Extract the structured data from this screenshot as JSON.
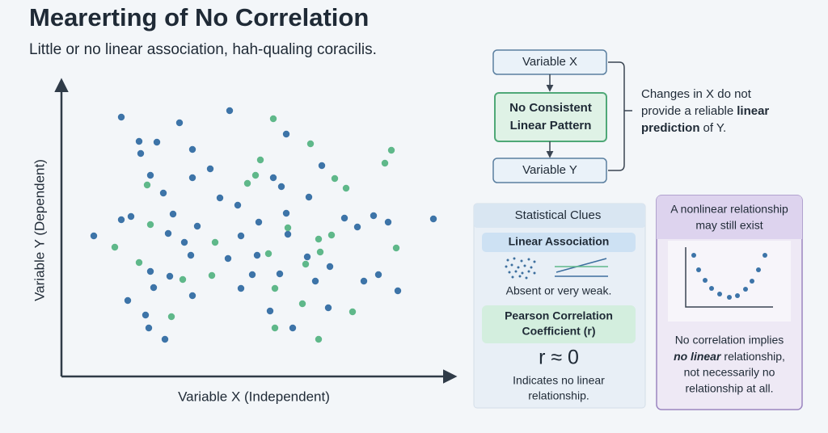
{
  "title": "Mearerting of No Correlation",
  "subtitle": "Little or no linear association, hah-qualing coracilis.",
  "scatter": {
    "x_label": "Variable X (Independent)",
    "y_label": "Variable Y (Dependent)"
  },
  "flow": {
    "nodes": [
      {
        "label": "Variable X"
      },
      {
        "label": [
          "No Consistent",
          "Linear Pattern"
        ]
      },
      {
        "label": "Variable Y"
      }
    ],
    "note": {
      "line1": "Changes in X do not",
      "line2": "provide a reliable",
      "line2_bold": "linear",
      "line3_bold": "prediction",
      "line3": "of Y."
    }
  },
  "stats": {
    "title": "Statistical Clues",
    "linear_association": {
      "title": "Linear Association",
      "text": "Absent or very weak."
    },
    "pearson": {
      "title": [
        "Pearson Correlation",
        "Coefficient (r)"
      ],
      "value": "r ≈ 0",
      "text": [
        "Indicates no linear",
        "relationship."
      ]
    }
  },
  "nonlinear": {
    "title": [
      "A nonlinear relationship",
      "may still exist"
    ],
    "text": {
      "line1": "No correlation implies",
      "line2_bold": "no linear",
      "line2": "relationship,",
      "line3": "not necessarily no",
      "line4": "relationship at all."
    }
  }
}
